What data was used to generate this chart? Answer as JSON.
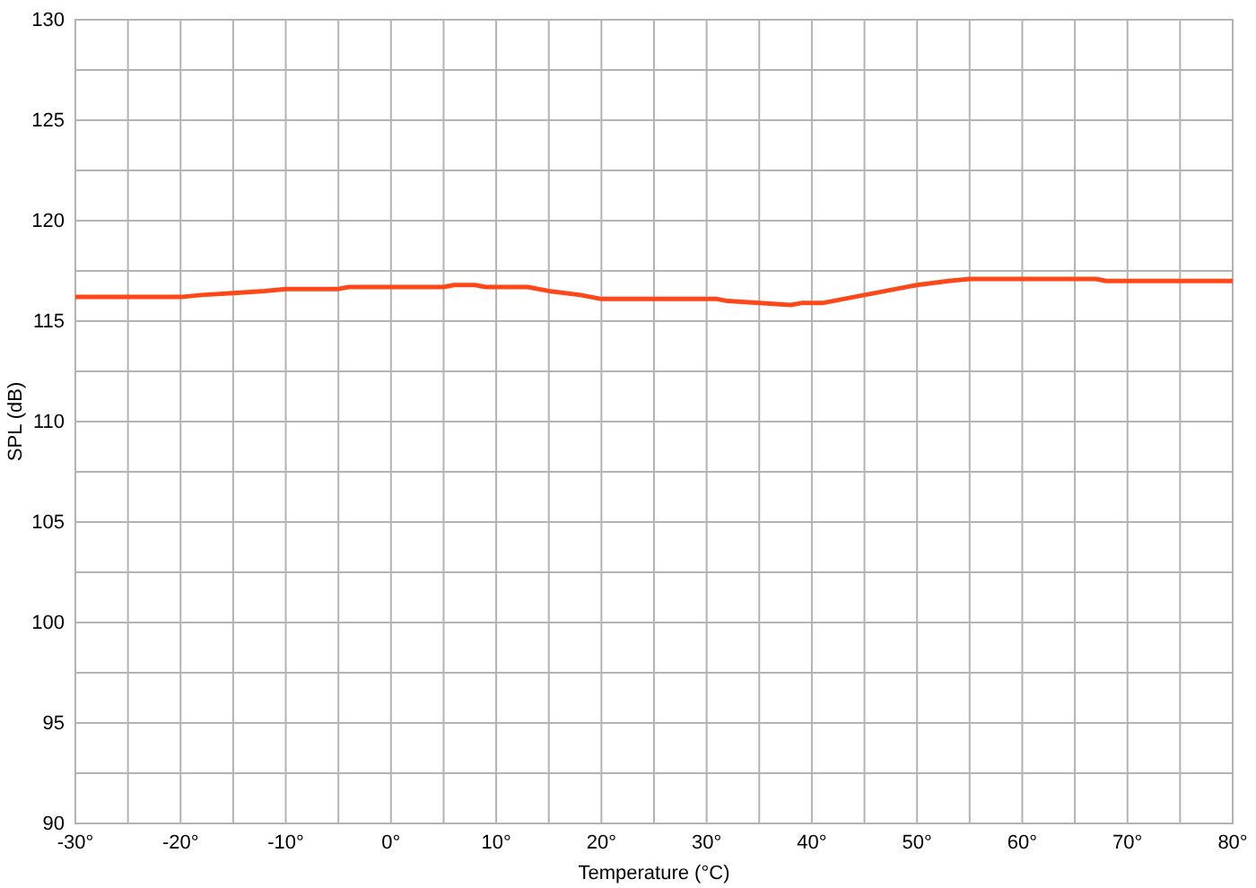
{
  "chart_data": {
    "type": "line",
    "xlabel": "Temperature (°C)",
    "ylabel": "SPL (dB)",
    "xlim": [
      -30,
      80
    ],
    "ylim": [
      90,
      130
    ],
    "xticks": [
      {
        "value": -30,
        "label": "-30°"
      },
      {
        "value": -25,
        "label": null
      },
      {
        "value": -20,
        "label": "-20°"
      },
      {
        "value": -15,
        "label": null
      },
      {
        "value": -10,
        "label": "-10°"
      },
      {
        "value": -5,
        "label": null
      },
      {
        "value": 0,
        "label": "0°"
      },
      {
        "value": 5,
        "label": null
      },
      {
        "value": 10,
        "label": "10°"
      },
      {
        "value": 15,
        "label": null
      },
      {
        "value": 20,
        "label": "20°"
      },
      {
        "value": 25,
        "label": null
      },
      {
        "value": 30,
        "label": "30°"
      },
      {
        "value": 35,
        "label": null
      },
      {
        "value": 40,
        "label": "40°"
      },
      {
        "value": 45,
        "label": null
      },
      {
        "value": 50,
        "label": "50°"
      },
      {
        "value": 55,
        "label": null
      },
      {
        "value": 60,
        "label": "60°"
      },
      {
        "value": 65,
        "label": null
      },
      {
        "value": 70,
        "label": "70°"
      },
      {
        "value": 75,
        "label": null
      },
      {
        "value": 80,
        "label": "80°"
      }
    ],
    "yticks": [
      90,
      {
        "value": 92.5,
        "label": null
      },
      95,
      {
        "value": 97.5,
        "label": null
      },
      100,
      {
        "value": 102.5,
        "label": null
      },
      105,
      {
        "value": 107.5,
        "label": null
      },
      110,
      {
        "value": 112.5,
        "label": null
      },
      115,
      {
        "value": 117.5,
        "label": null
      },
      120,
      {
        "value": 122.5,
        "label": null
      },
      125,
      {
        "value": 127.5,
        "label": null
      },
      130
    ],
    "grid": true,
    "series": [
      {
        "color": "#ff4719",
        "x": [
          -30,
          -20,
          -18,
          -15,
          -12,
          -10,
          -5,
          -4,
          5,
          6,
          8,
          9,
          13,
          15,
          18,
          20,
          31,
          32,
          35,
          38,
          39,
          41,
          45,
          50,
          53,
          55,
          67,
          68,
          80
        ],
        "values": [
          116.2,
          116.2,
          116.3,
          116.4,
          116.5,
          116.6,
          116.6,
          116.7,
          116.7,
          116.8,
          116.8,
          116.7,
          116.7,
          116.5,
          116.3,
          116.1,
          116.1,
          116.0,
          115.9,
          115.8,
          115.9,
          115.9,
          116.3,
          116.8,
          117.0,
          117.1,
          117.1,
          117.0,
          117.0
        ]
      }
    ]
  }
}
